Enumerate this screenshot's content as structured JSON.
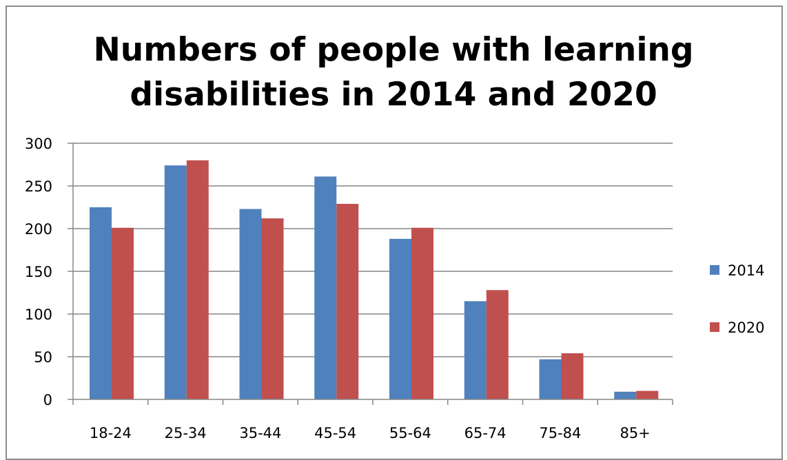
{
  "chart_data": {
    "type": "bar",
    "title_lines": [
      "Numbers of people with learning",
      "disabilities in 2014 and 2020"
    ],
    "categories": [
      "18-24",
      "25-34",
      "35-44",
      "45-54",
      "55-64",
      "65-74",
      "75-84",
      "85+"
    ],
    "series": [
      {
        "name": "2014",
        "color": "#4f81bd",
        "values": [
          225,
          274,
          223,
          261,
          188,
          115,
          47,
          9
        ]
      },
      {
        "name": "2020",
        "color": "#c0504d",
        "values": [
          201,
          280,
          212,
          229,
          201,
          128,
          54,
          10
        ]
      }
    ],
    "ylim": [
      0,
      300
    ],
    "yticks": [
      0,
      50,
      100,
      150,
      200,
      250,
      300
    ],
    "grid": true,
    "legend_position": "right"
  }
}
